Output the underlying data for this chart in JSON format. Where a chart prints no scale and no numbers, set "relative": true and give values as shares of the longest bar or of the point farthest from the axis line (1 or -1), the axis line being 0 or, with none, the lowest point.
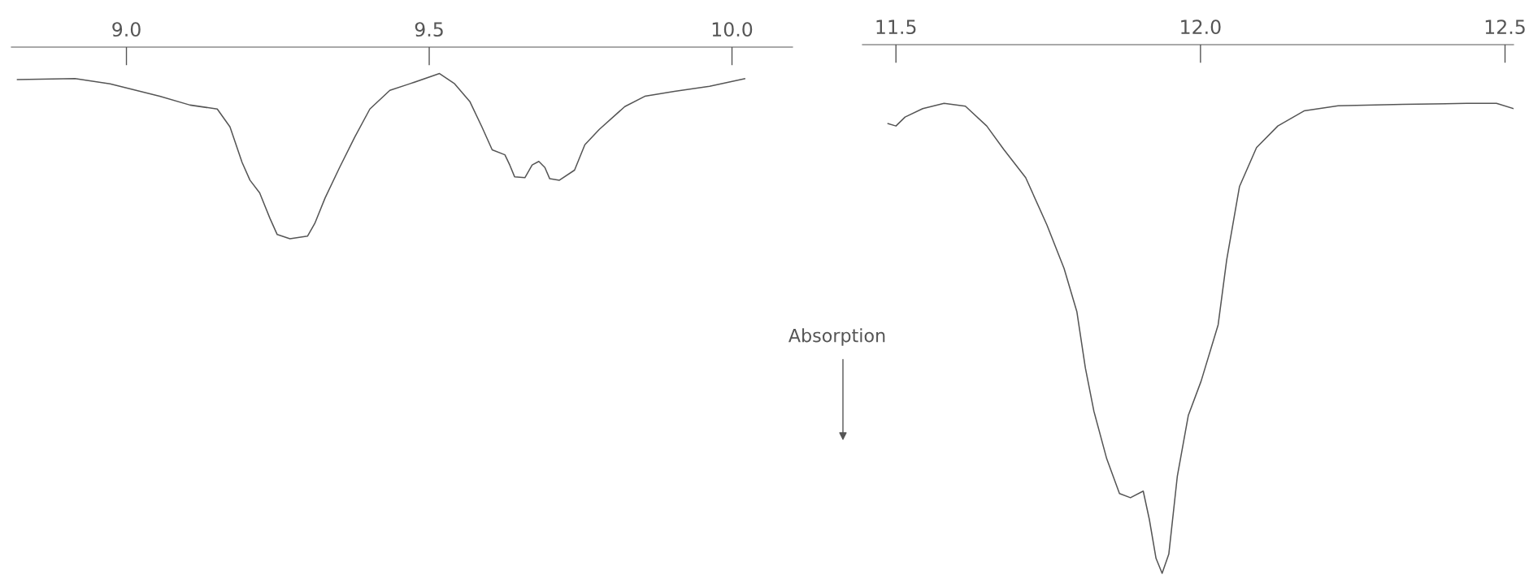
{
  "chart_data": [
    {
      "type": "line",
      "relative": true,
      "xlim": [
        8.81,
        10.1
      ],
      "xticks": [
        {
          "value": 9.0,
          "label": "9.0"
        },
        {
          "value": 9.5,
          "label": "9.5"
        },
        {
          "value": 10.0,
          "label": "10.0"
        }
      ],
      "grid": false,
      "legend": false,
      "series": [
        {
          "color": "#555555",
          "x": [
            8.82,
            8.915,
            8.973,
            9.055,
            9.105,
            9.15,
            9.171,
            9.191,
            9.204,
            9.22,
            9.237,
            9.249,
            9.27,
            9.299,
            9.311,
            9.328,
            9.352,
            9.377,
            9.402,
            9.435,
            9.468,
            9.517,
            9.542,
            9.567,
            9.587,
            9.604,
            9.625,
            9.633,
            9.641,
            9.658,
            9.67,
            9.681,
            9.691,
            9.699,
            9.715,
            9.74,
            9.757,
            9.781,
            9.823,
            9.856,
            9.905,
            9.963,
            10.021
          ],
          "values": [
            0.963,
            0.969,
            0.938,
            0.862,
            0.809,
            0.785,
            0.677,
            0.462,
            0.354,
            0.277,
            0.123,
            0.025,
            0,
            0.015,
            0.092,
            0.246,
            0.431,
            0.615,
            0.785,
            0.898,
            0.938,
            1,
            0.938,
            0.831,
            0.677,
            0.538,
            0.508,
            0.446,
            0.375,
            0.369,
            0.446,
            0.468,
            0.431,
            0.363,
            0.354,
            0.415,
            0.569,
            0.662,
            0.8,
            0.862,
            0.892,
            0.923,
            0.969
          ]
        }
      ]
    },
    {
      "type": "line",
      "relative": true,
      "xlim": [
        11.445,
        12.514
      ],
      "xticks": [
        {
          "value": 11.5,
          "label": "11.5"
        },
        {
          "value": 12.0,
          "label": "12.0"
        },
        {
          "value": 12.5,
          "label": "12.5"
        }
      ],
      "grid": false,
      "legend": false,
      "annotations": [
        "Absorption"
      ],
      "series": [
        {
          "color": "#555555",
          "x": [
            11.487,
            11.5,
            11.515,
            11.544,
            11.579,
            11.614,
            11.649,
            11.677,
            11.713,
            11.748,
            11.776,
            11.797,
            11.811,
            11.825,
            11.846,
            11.867,
            11.885,
            11.906,
            11.916,
            11.927,
            11.937,
            11.948,
            11.962,
            11.98,
            12.001,
            12.029,
            12.043,
            12.064,
            12.092,
            12.127,
            12.17,
            12.226,
            12.332,
            12.437,
            12.486,
            12.514
          ],
          "values": [
            0.957,
            0.952,
            0.971,
            0.989,
            1,
            0.994,
            0.952,
            0.902,
            0.842,
            0.741,
            0.649,
            0.557,
            0.437,
            0.345,
            0.244,
            0.17,
            0.161,
            0.175,
            0.115,
            0.032,
            0,
            0.041,
            0.207,
            0.336,
            0.409,
            0.529,
            0.667,
            0.823,
            0.906,
            0.952,
            0.984,
            0.995,
            0.998,
            1,
            1,
            0.989
          ]
        }
      ]
    }
  ]
}
